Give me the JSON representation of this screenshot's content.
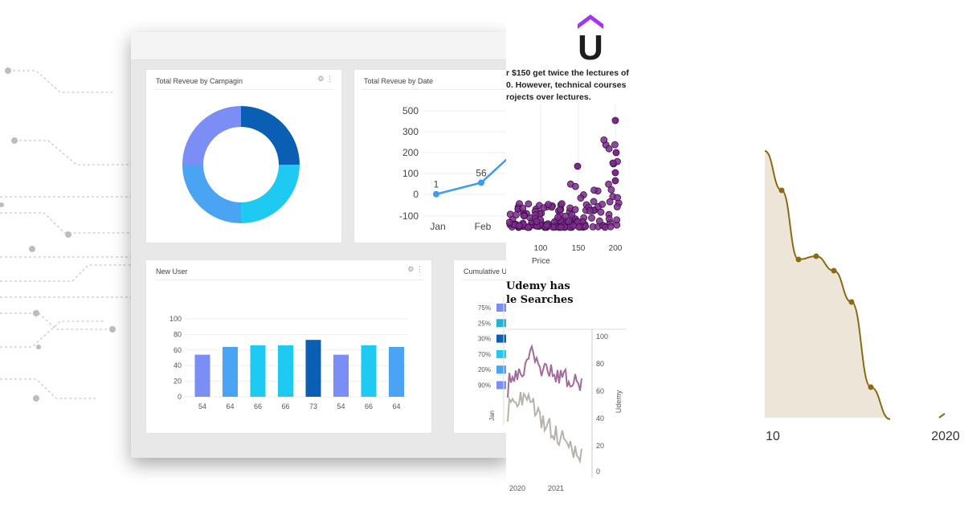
{
  "brand": {
    "logo_letter": "U",
    "accent": "#a435f0"
  },
  "dashboard": {
    "cards": {
      "campaign": {
        "title": "Total Reveue by Campagin"
      },
      "by_date": {
        "title": "Total Reveue by Date"
      },
      "new_user": {
        "title": "New User"
      },
      "cumulative": {
        "title": "Cumulative U"
      }
    }
  },
  "chart_data": [
    {
      "type": "pie",
      "title": "Total Reveue by Campagin",
      "values": [
        25,
        25,
        25,
        25
      ],
      "colors": [
        "#0a5fb4",
        "#1ec9f2",
        "#4aa3f3",
        "#7b8ef5"
      ]
    },
    {
      "type": "line",
      "title": "Total Reveue by Date",
      "categories": [
        "Jan",
        "Feb"
      ],
      "values": [
        1,
        56
      ],
      "data_labels": [
        "1",
        "56"
      ],
      "yticks": [
        "500",
        "300",
        "200",
        "100",
        "0",
        "-100"
      ],
      "ylim": [
        -100,
        500
      ]
    },
    {
      "type": "bar",
      "title": "New User",
      "categories": [
        "54",
        "64",
        "66",
        "66",
        "73",
        "54",
        "66",
        "64"
      ],
      "values": [
        54,
        64,
        66,
        66,
        73,
        54,
        66,
        64
      ],
      "colors": [
        "#7b8ef5",
        "#4aa3f3",
        "#1ec9f2",
        "#1ec9f2",
        "#0a5fb4",
        "#7b8ef5",
        "#1ec9f2",
        "#4aa3f3"
      ],
      "yticks": [
        "100",
        "80",
        "60",
        "40",
        "20",
        "0"
      ],
      "ylim": [
        0,
        100
      ]
    },
    {
      "type": "bar",
      "title": "Cumulative U",
      "categories": [
        "75%",
        "25%",
        "30%",
        "70%",
        "20%",
        "90%"
      ],
      "colors": [
        "#7b8ef5",
        "#27b0d6",
        "#0a5fb4",
        "#1ec9f2",
        "#4aa3f3",
        "#7b8ef5"
      ],
      "xlabel": "Jan"
    },
    {
      "type": "scatter",
      "xlabel": "Price",
      "xticks": [
        "100",
        "150",
        "200"
      ]
    },
    {
      "type": "line",
      "ylabel": "Udemy",
      "xticks": [
        "2020",
        "2021"
      ],
      "yticks": [
        "100",
        "80",
        "60",
        "40",
        "20",
        "0"
      ]
    },
    {
      "type": "area",
      "xticks": [
        "10",
        "2020"
      ]
    }
  ],
  "udemy_article": {
    "text_lines": [
      "r $150 get twice the lectures of",
      "0. However, technical courses",
      "rojects over lectures."
    ],
    "heading_lines": [
      "Udemy has",
      "le Searches"
    ]
  }
}
